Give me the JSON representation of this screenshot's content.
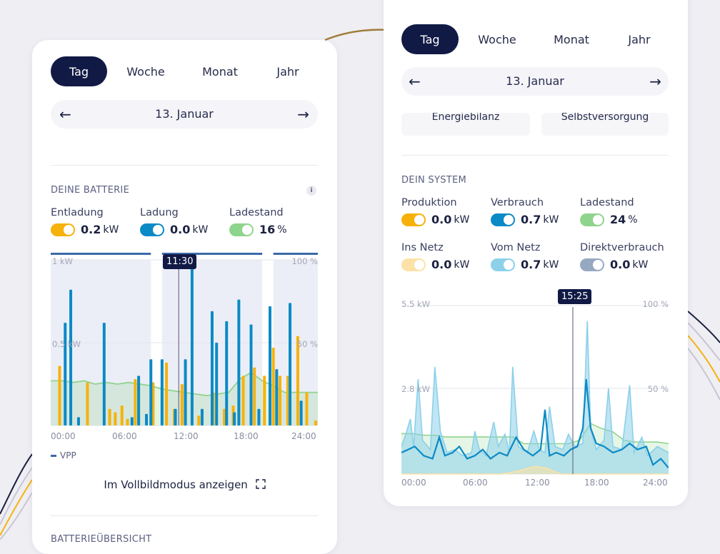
{
  "colors": {
    "navy": "#111a45",
    "orange": "#f6b20b",
    "blue": "#0b8ac6",
    "green": "#8fd48c",
    "light_blue": "#8cd0ea",
    "light_orange": "#fce2a6",
    "slate": "#97a8c2"
  },
  "left_panel": {
    "tabs": [
      "Tag",
      "Woche",
      "Monat",
      "Jahr"
    ],
    "active_tab": "Tag",
    "date": "13. Januar",
    "section_title": "DEINE BATTERIE",
    "info_label": "i",
    "metrics": [
      {
        "label": "Entladung",
        "value": "0.2",
        "unit": "kW",
        "color": "#f6b20b"
      },
      {
        "label": "Ladung",
        "value": "0.0",
        "unit": "kW",
        "color": "#0b8ac6"
      },
      {
        "label": "Ladestand",
        "value": "16",
        "unit": "%",
        "color": "#8fd48c"
      }
    ],
    "chart": {
      "y_left_labels": [
        "1 kW",
        "0.5 kW"
      ],
      "y_right_labels": [
        "100 %",
        "50 %"
      ],
      "x_ticks": [
        "00:00",
        "06:00",
        "12:00",
        "18:00",
        "24:00"
      ],
      "tooltip": "11:30",
      "legend": "VPP"
    },
    "fullscreen_label": "Im Vollbildmodus anzeigen",
    "next_section_title": "BATTERIEÜBERSICHT"
  },
  "right_panel": {
    "tabs": [
      "Tag",
      "Woche",
      "Monat",
      "Jahr"
    ],
    "active_tab": "Tag",
    "date": "13. Januar",
    "subtabs": [
      "Energiebilanz",
      "Selbstversorgung"
    ],
    "section_title": "DEIN SYSTEM",
    "metrics": [
      {
        "label": "Produktion",
        "value": "0.0",
        "unit": "kW",
        "color": "#f6b20b"
      },
      {
        "label": "Verbrauch",
        "value": "0.7",
        "unit": "kW",
        "color": "#0b8ac6"
      },
      {
        "label": "Ladestand",
        "value": "24",
        "unit": "%",
        "color": "#8fd48c"
      },
      {
        "label": "Ins Netz",
        "value": "0.0",
        "unit": "kW",
        "color": "#fce2a6"
      },
      {
        "label": "Vom Netz",
        "value": "0.7",
        "unit": "kW",
        "color": "#8cd0ea"
      },
      {
        "label": "Direktverbrauch",
        "value": "0.0",
        "unit": "kW",
        "color": "#97a8c2"
      }
    ],
    "chart": {
      "y_left_labels": [
        "5.5 kW",
        "2.8 kW"
      ],
      "y_right_labels": [
        "100 %",
        "50 %"
      ],
      "x_ticks": [
        "00:00",
        "06:00",
        "12:00",
        "18:00",
        "24:00"
      ],
      "tooltip": "15:25"
    }
  },
  "chart_data": [
    {
      "type": "bar",
      "x_unit": "hour",
      "x_range": [
        0,
        24
      ],
      "ylim_kw": [
        0,
        1
      ],
      "ylim_percent": [
        0,
        100
      ],
      "cursor_hour": 11.5,
      "vpp_windows": [
        [
          0,
          9
        ],
        [
          10,
          19
        ],
        [
          20,
          24
        ]
      ],
      "series": [
        {
          "name": "Entladung",
          "color": "#f6b20b",
          "bars": [
            [
              0.8,
              0.36
            ],
            [
              3.3,
              0.26
            ],
            [
              5.3,
              0.1
            ],
            [
              5.8,
              0.08
            ],
            [
              6.4,
              0.12
            ],
            [
              6.9,
              0.04
            ],
            [
              7.6,
              0.28
            ],
            [
              9.2,
              0.26
            ],
            [
              10.4,
              0.38
            ],
            [
              11.1,
              0.1
            ],
            [
              11.8,
              0.25
            ],
            [
              13.3,
              0.06
            ],
            [
              14.6,
              0.2
            ],
            [
              15.6,
              0.1
            ],
            [
              16.4,
              0.12
            ],
            [
              17.3,
              0.3
            ],
            [
              18.3,
              0.35
            ],
            [
              19.2,
              0.3
            ],
            [
              20.0,
              0.47
            ],
            [
              20.6,
              0.3
            ],
            [
              21.3,
              0.3
            ],
            [
              22.2,
              0.54
            ],
            [
              23.0,
              0.2
            ],
            [
              23.8,
              0.03
            ]
          ]
        },
        {
          "name": "Ladung",
          "color": "#0b8ac6",
          "bars": [
            [
              1.3,
              0.62
            ],
            [
              1.8,
              0.82
            ],
            [
              2.5,
              0.05
            ],
            [
              4.8,
              0.62
            ],
            [
              7.3,
              0.05
            ],
            [
              7.9,
              0.3
            ],
            [
              8.6,
              0.07
            ],
            [
              9.0,
              0.4
            ],
            [
              10.0,
              0.4
            ],
            [
              11.2,
              0.1
            ],
            [
              12.1,
              0.4
            ],
            [
              12.7,
              1.0
            ],
            [
              13.6,
              0.1
            ],
            [
              14.5,
              0.69
            ],
            [
              14.9,
              0.5
            ],
            [
              15.8,
              0.63
            ],
            [
              16.5,
              0.08
            ],
            [
              16.9,
              0.76
            ],
            [
              18.0,
              0.61
            ],
            [
              18.7,
              0.1
            ],
            [
              19.7,
              0.72
            ],
            [
              20.3,
              0.34
            ],
            [
              21.5,
              0.74
            ],
            [
              22.5,
              0.15
            ]
          ]
        }
      ],
      "ladestand_percent": [
        [
          0,
          27
        ],
        [
          1,
          27
        ],
        [
          2,
          26
        ],
        [
          3,
          27
        ],
        [
          4,
          25
        ],
        [
          5,
          26
        ],
        [
          6,
          25
        ],
        [
          7,
          26
        ],
        [
          8,
          25
        ],
        [
          9,
          24
        ],
        [
          10,
          22
        ],
        [
          11,
          21
        ],
        [
          12,
          20
        ],
        [
          13,
          19
        ],
        [
          14,
          18
        ],
        [
          15,
          19
        ],
        [
          16,
          20
        ],
        [
          17,
          28
        ],
        [
          18,
          32
        ],
        [
          19,
          27
        ],
        [
          20,
          24
        ],
        [
          21,
          20
        ],
        [
          22,
          20
        ],
        [
          23,
          20
        ],
        [
          24,
          20
        ]
      ]
    },
    {
      "type": "area",
      "x_unit": "hour",
      "x_range": [
        0,
        24
      ],
      "ylim_kw": [
        0,
        5.5
      ],
      "ylim_percent": [
        0,
        100
      ],
      "cursor_hour": 15.4,
      "series": [
        {
          "name": "Vom Netz",
          "color": "#8cd0ea",
          "values": [
            [
              0,
              0.9
            ],
            [
              0.4,
              1.3
            ],
            [
              0.8,
              1.8
            ],
            [
              1.1,
              0.9
            ],
            [
              1.5,
              3.1
            ],
            [
              1.9,
              1.1
            ],
            [
              2.6,
              0.8
            ],
            [
              3.0,
              3.5
            ],
            [
              3.5,
              1.4
            ],
            [
              4.1,
              0.7
            ],
            [
              4.8,
              0.8
            ],
            [
              5.5,
              0.6
            ],
            [
              6.3,
              0.7
            ],
            [
              6.6,
              1.4
            ],
            [
              7.0,
              0.8
            ],
            [
              7.6,
              0.6
            ],
            [
              8.3,
              1.7
            ],
            [
              8.7,
              0.9
            ],
            [
              9.3,
              1.3
            ],
            [
              9.7,
              0.7
            ],
            [
              10.0,
              3.5
            ],
            [
              10.5,
              0.9
            ],
            [
              11.3,
              0.7
            ],
            [
              11.9,
              1.4
            ],
            [
              12.4,
              0.8
            ],
            [
              12.9,
              0.7
            ],
            [
              13.3,
              2.2
            ],
            [
              13.8,
              0.9
            ],
            [
              14.5,
              0.8
            ],
            [
              15.0,
              1.3
            ],
            [
              15.6,
              0.9
            ],
            [
              16.3,
              1.0
            ],
            [
              16.7,
              5.0
            ],
            [
              17.0,
              1.5
            ],
            [
              17.5,
              0.8
            ],
            [
              18.2,
              1.1
            ],
            [
              18.6,
              2.8
            ],
            [
              19.0,
              0.9
            ],
            [
              19.8,
              0.8
            ],
            [
              20.5,
              2.9
            ],
            [
              20.9,
              0.7
            ],
            [
              21.6,
              1.2
            ],
            [
              22.1,
              0.6
            ],
            [
              23.0,
              0.9
            ],
            [
              24,
              0.7
            ]
          ]
        },
        {
          "name": "Verbrauch",
          "color": "#0b8ac6",
          "values": [
            [
              0,
              0.7
            ],
            [
              0.6,
              0.8
            ],
            [
              1.2,
              0.9
            ],
            [
              2.0,
              0.6
            ],
            [
              2.8,
              0.5
            ],
            [
              3.4,
              1.2
            ],
            [
              3.9,
              0.6
            ],
            [
              4.6,
              0.7
            ],
            [
              5.2,
              0.9
            ],
            [
              5.9,
              0.5
            ],
            [
              6.6,
              0.6
            ],
            [
              7.3,
              0.8
            ],
            [
              8.0,
              0.5
            ],
            [
              8.8,
              0.7
            ],
            [
              9.5,
              0.6
            ],
            [
              10.3,
              1.2
            ],
            [
              11.0,
              0.8
            ],
            [
              11.8,
              0.6
            ],
            [
              12.5,
              0.8
            ],
            [
              12.9,
              2.1
            ],
            [
              13.3,
              0.6
            ],
            [
              13.9,
              0.7
            ],
            [
              14.6,
              0.6
            ],
            [
              15.2,
              0.8
            ],
            [
              15.8,
              0.9
            ],
            [
              16.3,
              1.5
            ],
            [
              16.6,
              3.1
            ],
            [
              17.0,
              1.5
            ],
            [
              17.5,
              1.0
            ],
            [
              18.2,
              0.9
            ],
            [
              19.0,
              0.7
            ],
            [
              19.8,
              0.8
            ],
            [
              20.5,
              1.0
            ],
            [
              21.2,
              0.8
            ],
            [
              22.0,
              0.9
            ],
            [
              22.6,
              0.3
            ],
            [
              23.3,
              0.5
            ],
            [
              24,
              0.2
            ]
          ]
        },
        {
          "name": "Ladestand",
          "color": "#8fd48c",
          "percent": true,
          "values": [
            [
              0,
              24
            ],
            [
              1,
              24
            ],
            [
              2,
              23
            ],
            [
              3,
              23
            ],
            [
              4,
              22
            ],
            [
              5,
              22
            ],
            [
              6,
              22
            ],
            [
              7,
              22
            ],
            [
              8,
              22
            ],
            [
              9,
              22
            ],
            [
              10,
              22
            ],
            [
              11,
              18
            ],
            [
              12,
              18
            ],
            [
              13,
              18
            ],
            [
              14,
              18
            ],
            [
              15,
              18
            ],
            [
              16,
              20
            ],
            [
              17,
              30
            ],
            [
              18,
              27
            ],
            [
              19,
              25
            ],
            [
              20,
              20
            ],
            [
              21,
              19
            ],
            [
              22,
              19
            ],
            [
              23,
              19
            ],
            [
              24,
              18
            ]
          ]
        },
        {
          "name": "Produktion",
          "color": "#fce2a6",
          "values": [
            [
              0,
              0
            ],
            [
              9,
              0
            ],
            [
              10.5,
              0.1
            ],
            [
              12,
              0.25
            ],
            [
              13,
              0.2
            ],
            [
              14.3,
              0
            ],
            [
              24,
              0
            ]
          ]
        }
      ]
    }
  ]
}
